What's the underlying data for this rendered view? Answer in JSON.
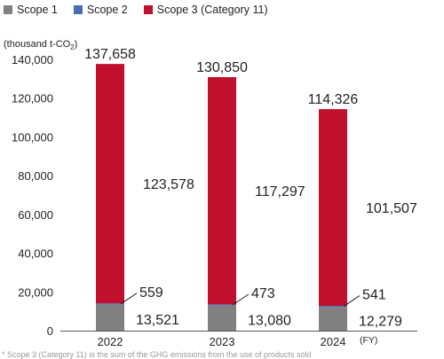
{
  "legend": [
    {
      "label": "Scope 1",
      "color": "#808080"
    },
    {
      "label": "Scope 2",
      "color": "#4a6db3"
    },
    {
      "label": "Scope 3 (Category 11)",
      "color": "#c0102e"
    }
  ],
  "unit_label": "(thousand t-CO",
  "unit_sub": "2",
  "unit_close": ")",
  "fy_label": "(FY)",
  "footnote": "* Scope 3 (Category 11) is the sum of the GHG emissions from the use of products sold",
  "chart_data": {
    "type": "bar",
    "stacked": true,
    "categories": [
      "2022",
      "2023",
      "2024"
    ],
    "series": [
      {
        "name": "Scope 1",
        "values": [
          13521,
          13080,
          12279
        ],
        "labels": [
          "13,521",
          "13,080",
          "12,279"
        ],
        "color": "#808080"
      },
      {
        "name": "Scope 2",
        "values": [
          559,
          473,
          541
        ],
        "labels": [
          "559",
          "473",
          "541"
        ],
        "color": "#4a6db3"
      },
      {
        "name": "Scope 3 (Category 11)",
        "values": [
          123578,
          117297,
          101507
        ],
        "labels": [
          "123,578",
          "117,297",
          "101,507"
        ],
        "color": "#c0102e"
      }
    ],
    "totals": [
      137658,
      130850,
      114326
    ],
    "total_labels": [
      "137,658",
      "130,850",
      "114,326"
    ],
    "ylim": [
      0,
      140000
    ],
    "yticks": [
      0,
      20000,
      40000,
      60000,
      80000,
      100000,
      120000,
      140000
    ],
    "ytick_labels": [
      "0",
      "20,000",
      "40,000",
      "60,000",
      "80,000",
      "100,000",
      "120,000",
      "140,000"
    ],
    "grid": false
  }
}
